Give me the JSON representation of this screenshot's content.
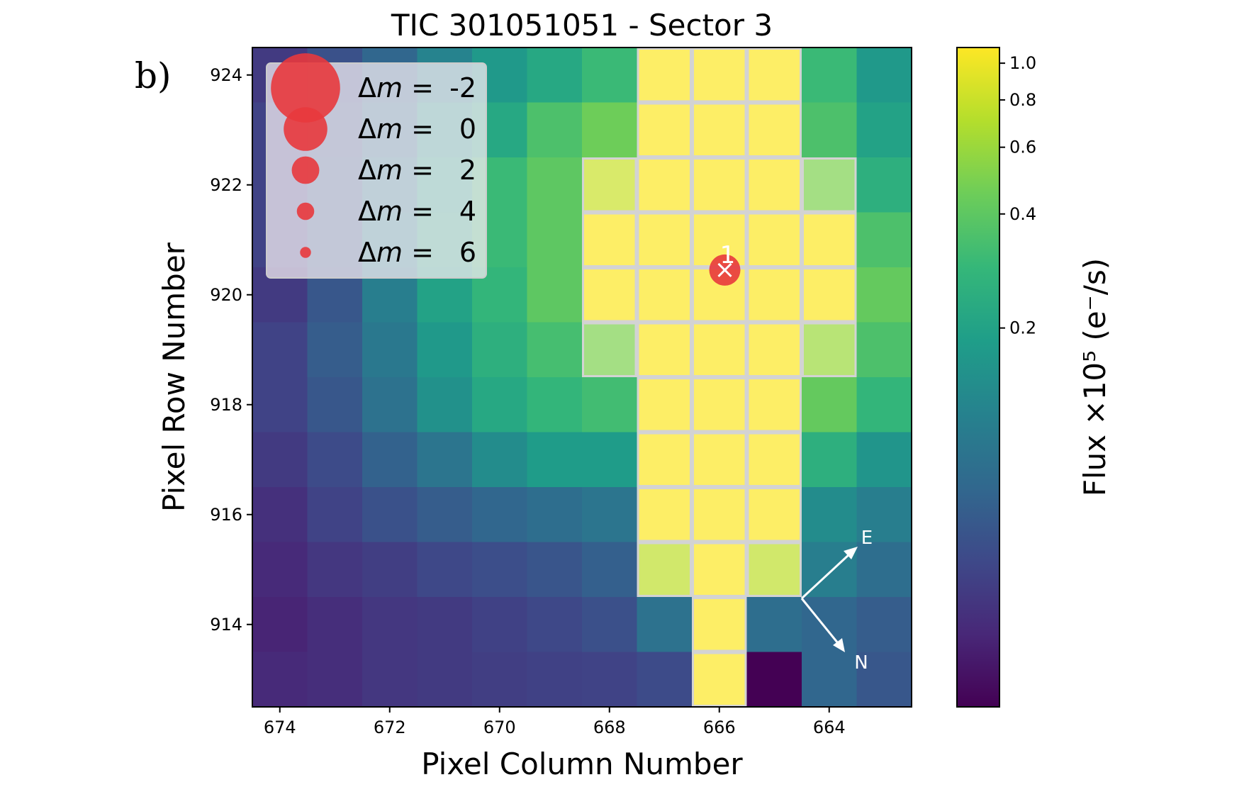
{
  "panel_label": "b)",
  "chart_data": {
    "type": "heatmap",
    "title": "TIC 301051051 - Sector 3",
    "xlabel": "Pixel Column Number",
    "ylabel": "Pixel Row Number",
    "colorbar_label": "Flux ×10⁵ (e⁻/s)",
    "colorbar_scale": "log",
    "colormap": "viridis",
    "x_axis_inverted": true,
    "columns": [
      674,
      673,
      672,
      671,
      670,
      669,
      668,
      667,
      666,
      665,
      664,
      663
    ],
    "rows": [
      924,
      923,
      922,
      921,
      920,
      919,
      918,
      917,
      916,
      915,
      914,
      913
    ],
    "x_ticks": [
      674,
      672,
      670,
      668,
      666,
      664
    ],
    "y_ticks": [
      924,
      922,
      920,
      918,
      916,
      914
    ],
    "colorbar_ticks": [
      "1.0",
      "0.8",
      "0.6",
      "0.4",
      "0.2"
    ],
    "colorbar_tick_values": [
      1.0,
      0.8,
      0.6,
      0.4,
      0.2
    ],
    "colorbar_range": [
      0.02,
      1.1
    ],
    "flux_grid": [
      [
        0.04,
        0.055,
        0.075,
        0.12,
        0.17,
        0.22,
        0.3,
        1.1,
        1.1,
        1.1,
        0.3,
        0.17
      ],
      [
        0.045,
        0.06,
        0.09,
        0.17,
        0.22,
        0.35,
        0.45,
        1.1,
        1.1,
        1.1,
        0.35,
        0.2
      ],
      [
        0.045,
        0.065,
        0.11,
        0.2,
        0.3,
        0.4,
        0.8,
        1.1,
        1.1,
        1.1,
        0.5,
        0.25
      ],
      [
        0.045,
        0.065,
        0.12,
        0.22,
        0.3,
        0.4,
        1.1,
        1.1,
        1.1,
        1.1,
        1.1,
        0.35
      ],
      [
        0.04,
        0.06,
        0.11,
        0.2,
        0.28,
        0.4,
        1.1,
        1.1,
        1.1,
        1.1,
        1.1,
        0.42
      ],
      [
        0.045,
        0.065,
        0.1,
        0.17,
        0.25,
        0.33,
        0.5,
        1.1,
        1.1,
        1.1,
        0.6,
        0.35
      ],
      [
        0.045,
        0.06,
        0.09,
        0.15,
        0.22,
        0.28,
        0.32,
        1.1,
        1.1,
        1.1,
        0.42,
        0.28
      ],
      [
        0.04,
        0.05,
        0.07,
        0.095,
        0.14,
        0.18,
        0.18,
        1.1,
        1.1,
        1.1,
        0.25,
        0.16
      ],
      [
        0.035,
        0.045,
        0.055,
        0.065,
        0.075,
        0.085,
        0.095,
        1.1,
        1.1,
        1.1,
        0.14,
        0.11
      ],
      [
        0.032,
        0.038,
        0.042,
        0.048,
        0.052,
        0.058,
        0.068,
        0.75,
        1.1,
        0.75,
        0.11,
        0.085
      ],
      [
        0.03,
        0.034,
        0.038,
        0.04,
        0.044,
        0.048,
        0.054,
        0.09,
        1.1,
        0.085,
        0.075,
        0.065
      ],
      [
        0.032,
        0.034,
        0.038,
        0.04,
        0.042,
        0.044,
        0.045,
        0.05,
        1.1,
        0.02,
        0.075,
        0.06
      ]
    ],
    "aperture_mask": [
      [
        0,
        0,
        0,
        0,
        0,
        0,
        0,
        1,
        1,
        1,
        0,
        0
      ],
      [
        0,
        0,
        0,
        0,
        0,
        0,
        0,
        1,
        1,
        1,
        0,
        0
      ],
      [
        0,
        0,
        0,
        0,
        0,
        0,
        1,
        1,
        1,
        1,
        1,
        0
      ],
      [
        0,
        0,
        0,
        0,
        0,
        0,
        1,
        1,
        1,
        1,
        1,
        0
      ],
      [
        0,
        0,
        0,
        0,
        0,
        0,
        1,
        1,
        1,
        1,
        1,
        0
      ],
      [
        0,
        0,
        0,
        0,
        0,
        0,
        1,
        1,
        1,
        1,
        1,
        0
      ],
      [
        0,
        0,
        0,
        0,
        0,
        0,
        0,
        1,
        1,
        1,
        0,
        0
      ],
      [
        0,
        0,
        0,
        0,
        0,
        0,
        0,
        1,
        1,
        1,
        0,
        0
      ],
      [
        0,
        0,
        0,
        0,
        0,
        0,
        0,
        1,
        1,
        1,
        0,
        0
      ],
      [
        0,
        0,
        0,
        0,
        0,
        0,
        0,
        1,
        1,
        1,
        0,
        0
      ],
      [
        0,
        0,
        0,
        0,
        0,
        0,
        0,
        0,
        1,
        0,
        0,
        0
      ],
      [
        0,
        0,
        0,
        0,
        0,
        0,
        0,
        0,
        1,
        0,
        0,
        0
      ]
    ],
    "target": {
      "label": "1",
      "col": 665.9,
      "row": 920.45,
      "delta_m": 0
    },
    "legend": {
      "placement": "top-left",
      "entries": [
        {
          "symbol": "Δ",
          "variable": "m",
          "eq": " = ",
          "value": "-2",
          "delta_m": -2
        },
        {
          "symbol": "Δ",
          "variable": "m",
          "eq": " = ",
          "value": "0",
          "delta_m": 0
        },
        {
          "symbol": "Δ",
          "variable": "m",
          "eq": " = ",
          "value": "2",
          "delta_m": 2
        },
        {
          "symbol": "Δ",
          "variable": "m",
          "eq": " = ",
          "value": "4",
          "delta_m": 4
        },
        {
          "symbol": "Δ",
          "variable": "m",
          "eq": " = ",
          "value": "6",
          "delta_m": 6
        }
      ]
    },
    "compass": {
      "east_label": "E",
      "north_label": "N"
    },
    "colors": {
      "marker": "#e8383d",
      "mask_border": "#d3d3d3",
      "masked_cell": "#ebe26b"
    }
  }
}
